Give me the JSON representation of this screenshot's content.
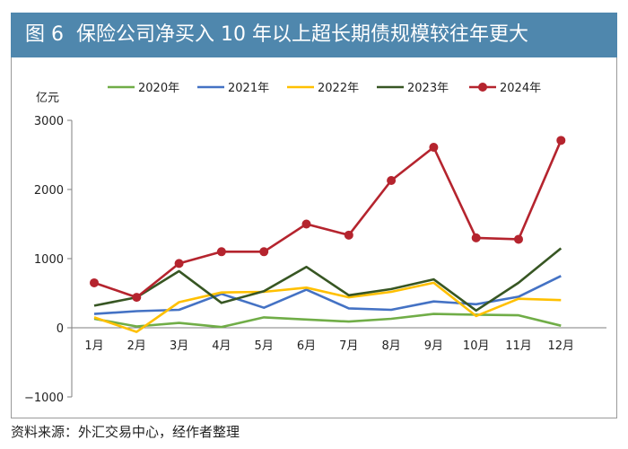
{
  "figure": {
    "number": "图 6",
    "title": "保险公司净买入 10 年以上超长期债规模较往年更大"
  },
  "source": "资料来源：外汇交易中心，经作者整理",
  "chart_data": {
    "type": "line",
    "title": "保险公司净买入 10 年以上超长期债规模较往年更大",
    "ylabel": "亿元",
    "xlabel": "",
    "ylim": [
      -1000,
      3000
    ],
    "yticks": [
      -1000,
      0,
      1000,
      2000,
      3000
    ],
    "yticklabels": [
      "−1000",
      "0",
      "1000",
      "2000",
      "3000"
    ],
    "categories": [
      "1月",
      "2月",
      "3月",
      "4月",
      "5月",
      "6月",
      "7月",
      "8月",
      "9月",
      "10月",
      "11月",
      "12月"
    ],
    "series": [
      {
        "name": "2020年",
        "color": "#70ad47",
        "markers": false,
        "values": [
          130,
          20,
          70,
          10,
          150,
          120,
          90,
          130,
          200,
          190,
          180,
          30
        ]
      },
      {
        "name": "2021年",
        "color": "#4472c4",
        "markers": false,
        "values": [
          200,
          240,
          260,
          490,
          290,
          550,
          280,
          260,
          380,
          340,
          450,
          750
        ]
      },
      {
        "name": "2022年",
        "color": "#ffc000",
        "markers": false,
        "values": [
          150,
          -60,
          370,
          510,
          520,
          580,
          440,
          520,
          650,
          170,
          420,
          400
        ]
      },
      {
        "name": "2023年",
        "color": "#375623",
        "markers": false,
        "values": [
          320,
          440,
          820,
          360,
          530,
          880,
          470,
          560,
          700,
          250,
          650,
          1150
        ]
      },
      {
        "name": "2024年",
        "color": "#b5242e",
        "markers": true,
        "values": [
          650,
          440,
          930,
          1100,
          1100,
          1500,
          1340,
          2130,
          2610,
          1300,
          1280,
          2710
        ]
      }
    ],
    "legend": "top"
  }
}
